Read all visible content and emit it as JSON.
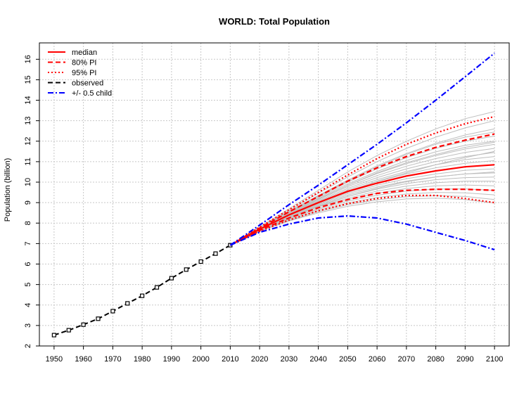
{
  "chart_data": {
    "type": "line",
    "title": "WORLD: Total Population",
    "xlabel": "",
    "ylabel": "Population (billion)",
    "xlim": [
      1945,
      2105
    ],
    "ylim": [
      2,
      16.8
    ],
    "x_ticks": [
      1950,
      1960,
      1970,
      1980,
      1990,
      2000,
      2010,
      2020,
      2030,
      2040,
      2050,
      2060,
      2070,
      2080,
      2090,
      2100
    ],
    "y_ticks": [
      2,
      3,
      4,
      5,
      6,
      7,
      8,
      9,
      10,
      11,
      12,
      13,
      14,
      15,
      16
    ],
    "grid": true,
    "legend_position": "top-left",
    "legend": [
      {
        "label": "median",
        "color": "#ff0000",
        "dash": "solid"
      },
      {
        "label": "80% PI",
        "color": "#ff0000",
        "dash": "dashed"
      },
      {
        "label": "95% PI",
        "color": "#ff0000",
        "dash": "dotted"
      },
      {
        "label": "observed",
        "color": "#000000",
        "dash": "dashed"
      },
      {
        "label": "+/- 0.5 child",
        "color": "#0000ff",
        "dash": "dotdash"
      }
    ],
    "series": [
      {
        "key": "observed",
        "color": "#000000",
        "dash": "dashed",
        "markers": true,
        "x": [
          1950,
          1955,
          1960,
          1965,
          1970,
          1975,
          1980,
          1985,
          1990,
          1995,
          2000,
          2005,
          2010
        ],
        "y": [
          2.53,
          2.77,
          3.04,
          3.33,
          3.7,
          4.08,
          4.45,
          4.86,
          5.31,
          5.73,
          6.12,
          6.51,
          6.92
        ]
      },
      {
        "key": "median",
        "color": "#ff0000",
        "dash": "solid",
        "x": [
          2010,
          2020,
          2030,
          2040,
          2050,
          2060,
          2070,
          2080,
          2090,
          2100
        ],
        "y": [
          6.92,
          7.7,
          8.4,
          9.0,
          9.55,
          9.95,
          10.3,
          10.55,
          10.75,
          10.85
        ]
      },
      {
        "key": "pi80_upper",
        "color": "#ff0000",
        "dash": "dashed",
        "x": [
          2010,
          2020,
          2030,
          2040,
          2050,
          2060,
          2070,
          2080,
          2090,
          2100
        ],
        "y": [
          6.92,
          7.75,
          8.55,
          9.3,
          10.05,
          10.7,
          11.25,
          11.7,
          12.05,
          12.35
        ]
      },
      {
        "key": "pi80_lower",
        "color": "#ff0000",
        "dash": "dashed",
        "x": [
          2010,
          2020,
          2030,
          2040,
          2050,
          2060,
          2070,
          2080,
          2090,
          2100
        ],
        "y": [
          6.92,
          7.65,
          8.25,
          8.75,
          9.15,
          9.45,
          9.6,
          9.65,
          9.65,
          9.6
        ]
      },
      {
        "key": "pi95_upper",
        "color": "#ff0000",
        "dash": "dotted",
        "x": [
          2010,
          2020,
          2030,
          2040,
          2050,
          2060,
          2070,
          2080,
          2090,
          2100
        ],
        "y": [
          6.92,
          7.8,
          8.65,
          9.5,
          10.35,
          11.15,
          11.85,
          12.4,
          12.85,
          13.2
        ]
      },
      {
        "key": "pi95_lower",
        "color": "#ff0000",
        "dash": "dotted",
        "x": [
          2010,
          2020,
          2030,
          2040,
          2050,
          2060,
          2070,
          2080,
          2090,
          2100
        ],
        "y": [
          6.92,
          7.6,
          8.15,
          8.6,
          8.95,
          9.2,
          9.35,
          9.35,
          9.2,
          9.0
        ]
      },
      {
        "key": "plus_half_child",
        "color": "#0000ff",
        "dash": "dotdash",
        "x": [
          2010,
          2020,
          2030,
          2040,
          2050,
          2060,
          2070,
          2080,
          2090,
          2100
        ],
        "y": [
          6.92,
          7.9,
          8.9,
          9.85,
          10.85,
          11.85,
          12.9,
          14.0,
          15.15,
          16.3
        ]
      },
      {
        "key": "minus_half_child",
        "color": "#0000ff",
        "dash": "dotdash",
        "x": [
          2010,
          2020,
          2030,
          2040,
          2050,
          2060,
          2070,
          2080,
          2090,
          2100
        ],
        "y": [
          6.92,
          7.55,
          7.95,
          8.25,
          8.35,
          8.25,
          7.95,
          7.55,
          7.15,
          6.7
        ]
      }
    ],
    "trajectories": {
      "color": "#bebebe",
      "x": [
        2010,
        2020,
        2030,
        2040,
        2050,
        2060,
        2070,
        2080,
        2090,
        2100
      ],
      "y_sets": [
        [
          6.92,
          7.8,
          8.7,
          9.6,
          10.5,
          11.3,
          12.0,
          12.6,
          13.1,
          13.45
        ],
        [
          6.92,
          7.78,
          8.62,
          9.45,
          10.25,
          11.0,
          11.65,
          12.2,
          12.65,
          13.0
        ],
        [
          6.92,
          7.76,
          8.58,
          9.35,
          10.1,
          10.8,
          11.4,
          11.9,
          12.3,
          12.6
        ],
        [
          6.92,
          7.75,
          8.55,
          9.3,
          10.0,
          10.65,
          11.2,
          11.65,
          12.0,
          12.25
        ],
        [
          6.92,
          7.74,
          8.52,
          9.25,
          9.92,
          10.52,
          11.05,
          11.48,
          11.8,
          12.0
        ],
        [
          6.92,
          7.73,
          8.49,
          9.2,
          9.85,
          10.42,
          10.9,
          11.3,
          11.62,
          11.85
        ],
        [
          6.92,
          7.72,
          8.46,
          9.15,
          9.78,
          10.32,
          10.78,
          11.15,
          11.45,
          11.65
        ],
        [
          6.92,
          7.71,
          8.44,
          9.1,
          9.7,
          10.22,
          10.65,
          11.0,
          11.25,
          11.45
        ],
        [
          6.92,
          7.71,
          8.42,
          9.06,
          9.63,
          10.12,
          10.52,
          10.85,
          11.1,
          11.25
        ],
        [
          6.92,
          7.7,
          8.4,
          9.02,
          9.57,
          10.03,
          10.4,
          10.7,
          10.92,
          11.05
        ],
        [
          6.92,
          7.7,
          8.38,
          8.98,
          9.5,
          9.94,
          10.28,
          10.55,
          10.75,
          10.85
        ],
        [
          6.92,
          7.69,
          8.36,
          8.94,
          9.44,
          9.85,
          10.17,
          10.4,
          10.58,
          10.65
        ],
        [
          6.92,
          7.68,
          8.33,
          8.9,
          9.37,
          9.76,
          10.05,
          10.26,
          10.4,
          10.45
        ],
        [
          6.92,
          7.67,
          8.3,
          8.85,
          9.3,
          9.66,
          9.93,
          10.12,
          10.22,
          10.25
        ],
        [
          6.92,
          7.66,
          8.27,
          8.8,
          9.22,
          9.56,
          9.81,
          9.97,
          10.05,
          10.05
        ],
        [
          6.92,
          7.65,
          8.24,
          8.74,
          9.15,
          9.46,
          9.69,
          9.82,
          9.86,
          9.82
        ],
        [
          6.92,
          7.64,
          8.21,
          8.68,
          9.07,
          9.36,
          9.56,
          9.66,
          9.67,
          9.6
        ],
        [
          6.92,
          7.62,
          8.17,
          8.62,
          8.98,
          9.25,
          9.42,
          9.5,
          9.48,
          9.38
        ],
        [
          6.92,
          7.61,
          8.13,
          8.56,
          8.9,
          9.14,
          9.29,
          9.34,
          9.3,
          9.15
        ],
        [
          6.92,
          7.6,
          8.1,
          8.5,
          8.82,
          9.04,
          9.18,
          9.22,
          9.15,
          8.98
        ],
        [
          6.92,
          7.74,
          8.56,
          9.32,
          10.05,
          10.75,
          11.35,
          11.85,
          12.2,
          12.45
        ],
        [
          6.92,
          7.69,
          8.38,
          9.0,
          9.55,
          10.05,
          10.45,
          10.85,
          11.2,
          11.5
        ],
        [
          6.92,
          7.72,
          8.48,
          9.18,
          9.85,
          10.45,
          10.95,
          11.35,
          11.7,
          11.95
        ],
        [
          6.92,
          7.66,
          8.28,
          8.82,
          9.3,
          9.7,
          10.02,
          10.25,
          10.4,
          10.5
        ]
      ]
    }
  }
}
